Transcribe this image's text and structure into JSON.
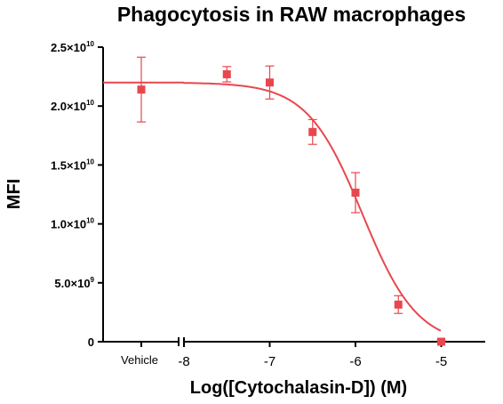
{
  "chart_data": {
    "type": "scatter",
    "title": "Phagocytosis in RAW macrophages",
    "xlabel": "Log([Cytochalasin-D]) (M)",
    "ylabel": "MFI",
    "x_scale": "log10 concentration with broken axis",
    "xlim": [
      -8.5,
      -4.5
    ],
    "ylim": [
      0,
      25000000000
    ],
    "grid": false,
    "legend": "none",
    "marker_color": "#e8474d",
    "curve_color": "#e8474d",
    "x_tick_labels": [
      {
        "value": "vehicle",
        "label": "Vehicle"
      },
      {
        "value": -8,
        "label": "-8"
      },
      {
        "value": -7,
        "label": "-7"
      },
      {
        "value": -6,
        "label": "-6"
      },
      {
        "value": -5,
        "label": "-5"
      }
    ],
    "y_tick_labels": [
      {
        "value": 0,
        "mantissa": "0",
        "exp": ""
      },
      {
        "value": 5000000000,
        "mantissa": "5.0×10",
        "exp": "9"
      },
      {
        "value": 10000000000,
        "mantissa": "1.0×10",
        "exp": "10"
      },
      {
        "value": 15000000000,
        "mantissa": "1.5×10",
        "exp": "10"
      },
      {
        "value": 20000000000,
        "mantissa": "2.0×10",
        "exp": "10"
      },
      {
        "value": 25000000000,
        "mantissa": "2.5×10",
        "exp": "10"
      }
    ],
    "points": [
      {
        "x": "vehicle",
        "y": 21400000000,
        "err": 2750000000
      },
      {
        "x": -7.5,
        "y": 22700000000,
        "err": 650000000
      },
      {
        "x": -7.0,
        "y": 22000000000,
        "err": 1400000000
      },
      {
        "x": -6.5,
        "y": 17800000000,
        "err": 1050000000
      },
      {
        "x": -6.0,
        "y": 12650000000,
        "err": 1700000000
      },
      {
        "x": -5.5,
        "y": 3150000000,
        "err": 750000000
      },
      {
        "x": -5.0,
        "y": 0,
        "err": 150000000
      }
    ],
    "fit_curve": {
      "model": "four-parameter logistic",
      "top": 22000000000,
      "bottom": -300000000,
      "log_ic50": -5.92,
      "hill_slope": -1.35,
      "x_range": [
        -8.5,
        -5.0
      ]
    }
  }
}
